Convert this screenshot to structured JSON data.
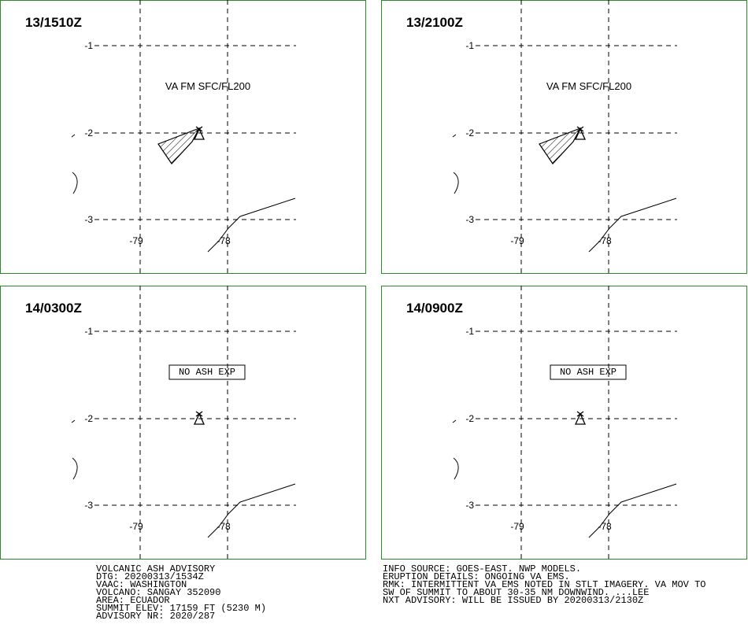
{
  "panels": [
    {
      "time": "13/1510Z",
      "label": "VA FM SFC/FL200",
      "ash": true
    },
    {
      "time": "13/2100Z",
      "label": "VA FM SFC/FL200",
      "ash": true
    },
    {
      "time": "14/0300Z",
      "label": "NO ASH EXP",
      "ash": false
    },
    {
      "time": "14/0900Z",
      "label": "NO ASH EXP",
      "ash": false
    }
  ],
  "grid": {
    "lat_labels": [
      "-1",
      "-2",
      "-3"
    ],
    "lon_labels": [
      "-79",
      "-78"
    ]
  },
  "advisory_left": [
    "VOLCANIC ASH ADVISORY",
    "DTG: 20200313/1534Z",
    "VAAC: WASHINGTON",
    "VOLCANO: SANGAY 352090",
    "AREA: ECUADOR",
    "SUMMIT ELEV: 17159 FT (5230 M)",
    "ADVISORY NR: 2020/287"
  ],
  "advisory_right": [
    "INFO SOURCE: GOES-EAST. NWP MODELS.",
    "ERUPTION DETAILS: ONGOING VA EMS.",
    "RMK: INTERMITTENT VA EMS NOTED IN STLT IMAGERY. VA MOV TO",
    "SW OF SUMMIT TO ABOUT 30-35 NM DOWNWIND. ...LEE",
    "NXT ADVISORY: WILL BE ISSUED BY 20200313/2130Z"
  ]
}
